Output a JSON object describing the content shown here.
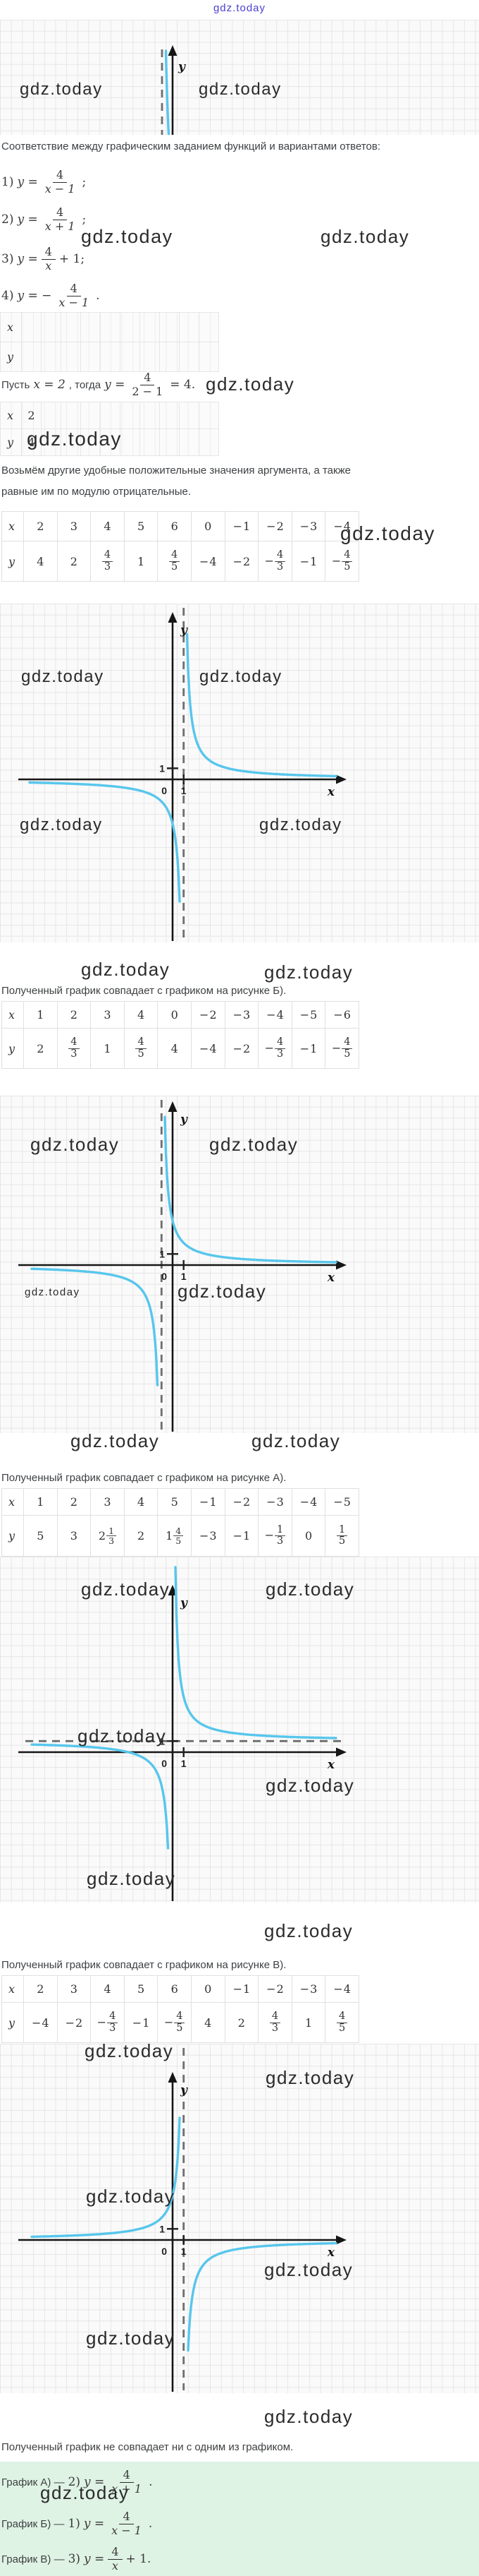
{
  "page": {
    "watermark": "gdz.today",
    "link_color": "#4b3fd0",
    "curve_color": "#57c6ec",
    "grid_color": "#e6e6e6",
    "answer_bg": "#dff3e5"
  },
  "top_graph": {
    "ylabel": "y"
  },
  "intro": {
    "lead": "Соответствие между графическим заданием функций и вариантами ответов:",
    "formulas": [
      [
        {
          "k": "m",
          "v": "1) "
        },
        {
          "k": "m",
          "v": "y ="
        },
        {
          "k": "f",
          "n": "4",
          "d": "x − 1"
        },
        {
          "k": "m",
          "v": ";"
        }
      ],
      [
        {
          "k": "m",
          "v": "2) "
        },
        {
          "k": "m",
          "v": "y ="
        },
        {
          "k": "f",
          "n": "4",
          "d": "x + 1"
        },
        {
          "k": "m",
          "v": ";"
        }
      ],
      [
        {
          "k": "m",
          "v": "3) "
        },
        {
          "k": "m",
          "v": "y ="
        },
        {
          "k": "f",
          "n": "4",
          "d": "x"
        },
        {
          "k": "m",
          "v": "+ 1;"
        }
      ],
      [
        {
          "k": "m",
          "v": "4) "
        },
        {
          "k": "m",
          "v": "y = −"
        },
        {
          "k": "f",
          "n": "4",
          "d": "x − 1"
        },
        {
          "k": "m",
          "v": "."
        }
      ]
    ]
  },
  "work": {
    "let_line": [
      {
        "k": "t",
        "v": "Пусть "
      },
      {
        "k": "m",
        "v": "x = 2"
      },
      {
        "k": "t",
        "v": ", тогда "
      },
      {
        "k": "m",
        "v": "y ="
      },
      {
        "k": "f",
        "n": "4",
        "d": "2 − 1"
      },
      {
        "k": "m",
        "v": "= 4."
      }
    ],
    "take_text_lines": [
      "Возьмём другие удобные положительные значения аргумента, а также",
      "равные им по модулю отрицательные."
    ],
    "empty_table": {
      "labels": [
        "x",
        "y"
      ],
      "cols": 10,
      "x": [],
      "y": []
    },
    "seed_table": {
      "labels": [
        "x",
        "y"
      ],
      "cols": 10,
      "x": [
        "2"
      ],
      "y": [
        "4"
      ]
    }
  },
  "tables": [
    {
      "labels": [
        "x",
        "y"
      ],
      "x": [
        "2",
        "3",
        "4",
        "5",
        "6",
        "0",
        "-1",
        "-2",
        "-3",
        "-4"
      ],
      "y": [
        "4",
        "2",
        "4/3",
        "1",
        "4/5",
        "-4",
        "-2",
        "-4/3",
        "-1",
        "-4/5"
      ]
    },
    {
      "labels": [
        "x",
        "y"
      ],
      "x": [
        "1",
        "2",
        "3",
        "4",
        "0",
        "-2",
        "-3",
        "-4",
        "-5",
        "-6"
      ],
      "y": [
        "2",
        "4/3",
        "1",
        "4/5",
        "4",
        "-4",
        "-2",
        "-4/3",
        "-1",
        "-4/5"
      ]
    },
    {
      "labels": [
        "x",
        "y"
      ],
      "x": [
        "1",
        "2",
        "3",
        "4",
        "5",
        "-1",
        "-2",
        "-3",
        "-4",
        "-5"
      ],
      "y": [
        "5",
        "3",
        "2 1/3",
        "2",
        "1 4/5",
        "-3",
        "-1",
        "-1/3",
        "0",
        "1/5"
      ]
    },
    {
      "labels": [
        "x",
        "y"
      ],
      "x": [
        "2",
        "3",
        "4",
        "5",
        "6",
        "0",
        "-1",
        "-2",
        "-3",
        "-4"
      ],
      "y": [
        "-4",
        "-2",
        "-4/3",
        "-1",
        "-4/5",
        "4",
        "2",
        "4/3",
        "1",
        "4/5"
      ]
    }
  ],
  "results": {
    "b": "Полученный график совпадает с графиком на рисунке Б).",
    "a": "Полученный график совпадает с графиком на рисунке А).",
    "v": "Полученный график совпадает с графиком на рисунке В).",
    "none": "Полученный график не совпадает ни с одним из графиком."
  },
  "answers": [
    [
      {
        "k": "t",
        "v": "График А) — "
      },
      {
        "k": "m",
        "v": "2) "
      },
      {
        "k": "m",
        "v": "y ="
      },
      {
        "k": "f",
        "n": "4",
        "d": "x + 1"
      },
      {
        "k": "m",
        "v": "."
      }
    ],
    [
      {
        "k": "t",
        "v": "График Б) — "
      },
      {
        "k": "m",
        "v": "1) "
      },
      {
        "k": "m",
        "v": "y ="
      },
      {
        "k": "f",
        "n": "4",
        "d": "x − 1"
      },
      {
        "k": "m",
        "v": "."
      }
    ],
    [
      {
        "k": "t",
        "v": "График В) — "
      },
      {
        "k": "m",
        "v": "3) "
      },
      {
        "k": "m",
        "v": "y ="
      },
      {
        "k": "f",
        "n": "4",
        "d": "x"
      },
      {
        "k": "m",
        "v": "+ 1."
      }
    ]
  ],
  "chart_data": [
    {
      "type": "line",
      "title": "y = 4/(x − 1)",
      "matches_figure": "Б)",
      "grid": true,
      "function": {
        "a": 4,
        "b": 1,
        "c": 0
      },
      "asymptote": {
        "orientation": "vertical",
        "value": 1
      },
      "xlabel": "x",
      "ylabel": "y",
      "tick_labels": {
        "x": "1",
        "y": "1",
        "origin": "0"
      },
      "points": {
        "x": [
          2,
          3,
          4,
          5,
          6,
          0,
          -1,
          -2,
          -3,
          -4
        ],
        "y": [
          4,
          2,
          1.33,
          1,
          0.8,
          -4,
          -2,
          -1.33,
          -1,
          -0.8
        ]
      }
    },
    {
      "type": "line",
      "title": "y = 4/(x + 1)",
      "matches_figure": "А)",
      "grid": true,
      "function": {
        "a": 4,
        "b": -1,
        "c": 0
      },
      "asymptote": {
        "orientation": "vertical",
        "value": -1
      },
      "xlabel": "x",
      "ylabel": "y",
      "tick_labels": {
        "x": "1",
        "y": "1",
        "origin": "0"
      },
      "points": {
        "x": [
          1,
          2,
          3,
          4,
          0,
          -2,
          -3,
          -4,
          -5,
          -6
        ],
        "y": [
          2,
          1.33,
          1,
          0.8,
          4,
          -4,
          -2,
          -1.33,
          -1,
          -0.8
        ]
      }
    },
    {
      "type": "line",
      "title": "y = 4/x + 1",
      "matches_figure": "В)",
      "grid": true,
      "function": {
        "a": 4,
        "b": 0,
        "c": 1
      },
      "asymptote": {
        "orientation": "horizontal",
        "value": 1
      },
      "xlabel": "x",
      "ylabel": "y",
      "tick_labels": {
        "x": "1",
        "y": "1",
        "origin": "0"
      },
      "points": {
        "x": [
          1,
          2,
          3,
          4,
          5,
          -1,
          -2,
          -3,
          -4,
          -5
        ],
        "y": [
          5,
          3,
          2.33,
          2,
          1.8,
          -3,
          -1,
          -0.33,
          0,
          0.2
        ]
      }
    },
    {
      "type": "line",
      "title": "y = −4/(x − 1)",
      "matches_figure": "нет",
      "grid": true,
      "function": {
        "a": -4,
        "b": 1,
        "c": 0
      },
      "asymptote": {
        "orientation": "vertical",
        "value": 1
      },
      "xlabel": "x",
      "ylabel": "y",
      "tick_labels": {
        "x": "1",
        "y": "1",
        "origin": "0"
      },
      "points": {
        "x": [
          2,
          3,
          4,
          5,
          6,
          0,
          -1,
          -2,
          -3,
          -4
        ],
        "y": [
          -4,
          -2,
          -1.33,
          -1,
          -0.8,
          4,
          2,
          1.33,
          1,
          0.8
        ]
      }
    }
  ]
}
